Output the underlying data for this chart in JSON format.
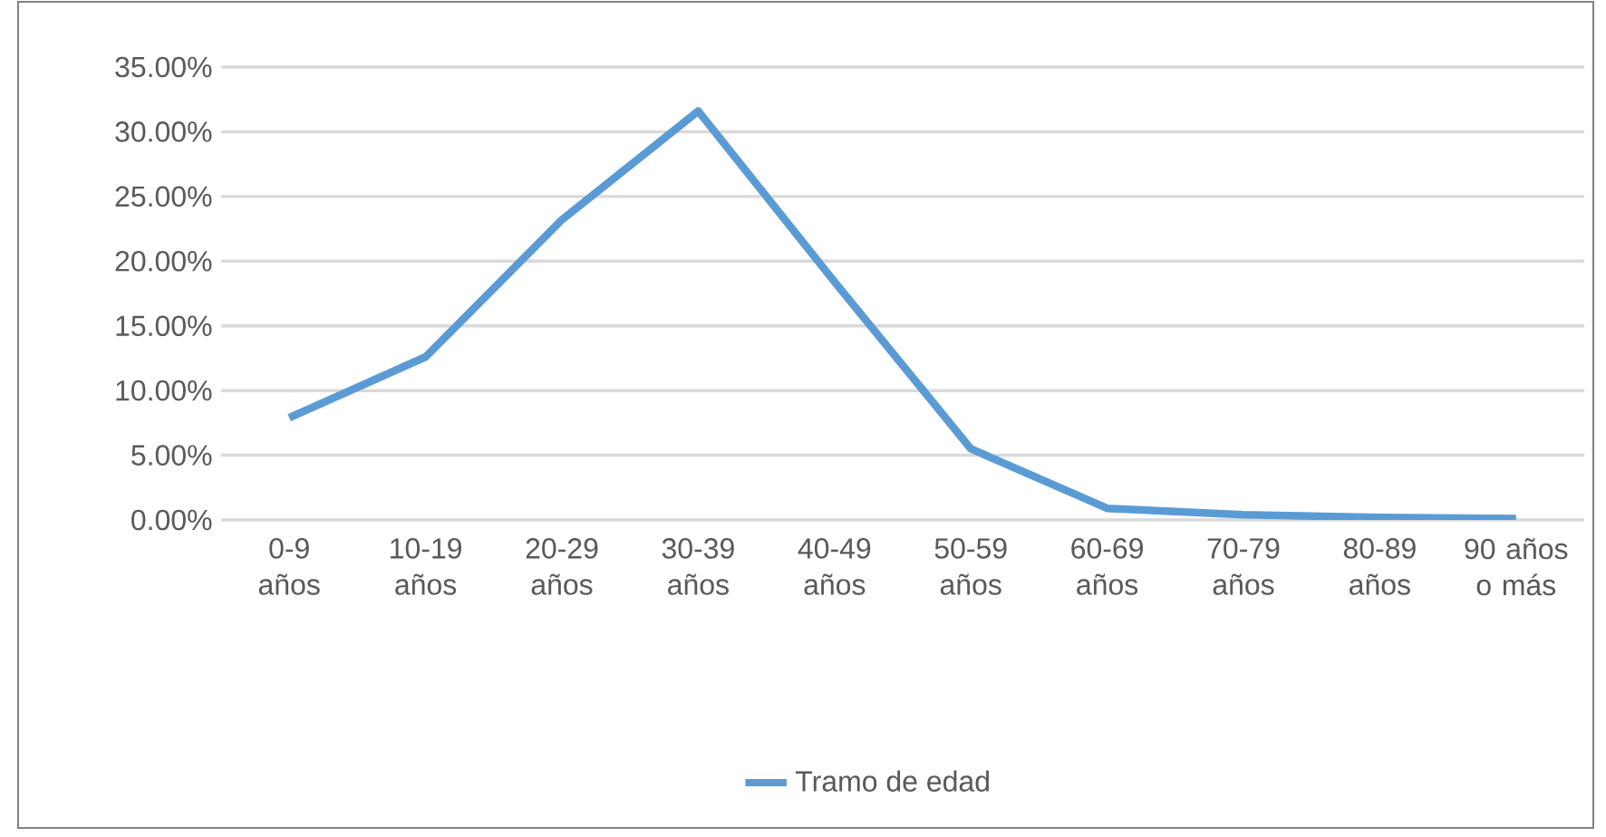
{
  "chart_data": {
    "type": "line",
    "categories": [
      "0-9 años",
      "10-19 años",
      "20-29 años",
      "30-39 años",
      "40-49 años",
      "50-59 años",
      "60-69 años",
      "70-79 años",
      "80-89 años",
      "90 años o más"
    ],
    "series": [
      {
        "name": "Tramo de edad",
        "color": "#5b9bd5",
        "values": [
          7.9,
          12.6,
          23.2,
          31.6,
          18.4,
          5.5,
          0.9,
          0.4,
          0.2,
          0.1
        ]
      }
    ],
    "ylim": [
      0,
      35
    ],
    "yticks": [
      {
        "value": 0,
        "label": "0.00%"
      },
      {
        "value": 5,
        "label": "5.00%"
      },
      {
        "value": 10,
        "label": "10.00%"
      },
      {
        "value": 15,
        "label": "15.00%"
      },
      {
        "value": 20,
        "label": "20.00%"
      },
      {
        "value": 25,
        "label": "25.00%"
      },
      {
        "value": 30,
        "label": "30.00%"
      },
      {
        "value": 35,
        "label": "35.00%"
      }
    ],
    "grid": "y",
    "legend": "bottom",
    "marker": "none",
    "line_style": "solid"
  }
}
